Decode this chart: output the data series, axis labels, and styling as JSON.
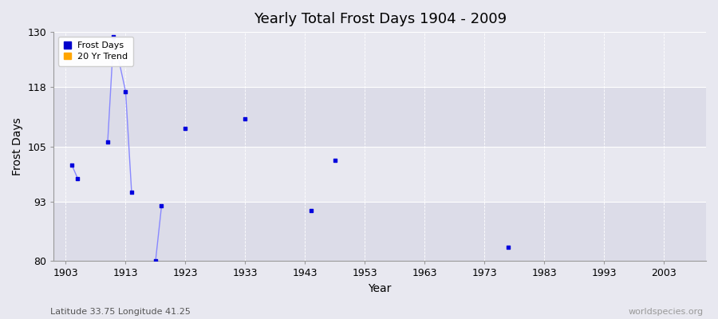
{
  "title": "Yearly Total Frost Days 1904 - 2009",
  "xlabel": "Year",
  "ylabel": "Frost Days",
  "xlim": [
    1901,
    2010
  ],
  "ylim": [
    80,
    130
  ],
  "yticks": [
    80,
    93,
    105,
    118,
    130
  ],
  "xticks": [
    1903,
    1913,
    1923,
    1933,
    1943,
    1953,
    1963,
    1973,
    1983,
    1993,
    2003
  ],
  "bg_color_light": "#dcdce8",
  "bg_color_dark": "#e8e8f0",
  "line_color": "#8888ff",
  "marker_color": "#0000dd",
  "legend_frost_color": "#0000cc",
  "legend_trend_color": "#ffa500",
  "subtitle": "Latitude 33.75 Longitude 41.25",
  "watermark": "worldspecies.org",
  "frost_years": [
    1904,
    1905,
    1910,
    1911,
    1913,
    1914,
    1918,
    1919,
    1923,
    1933,
    1944,
    1948,
    1977
  ],
  "frost_values": [
    101,
    98,
    106,
    129,
    117,
    95,
    80,
    92,
    109,
    111,
    91,
    102,
    83
  ],
  "segments": [
    [
      [
        1904,
        101
      ],
      [
        1905,
        98
      ]
    ],
    [
      [
        1910,
        106
      ],
      [
        1911,
        129
      ]
    ],
    [
      [
        1911,
        129
      ],
      [
        1913,
        117
      ]
    ],
    [
      [
        1913,
        117
      ],
      [
        1914,
        95
      ]
    ],
    [
      [
        1918,
        80
      ],
      [
        1919,
        92
      ]
    ]
  ],
  "isolated": [
    [
      1923,
      109
    ],
    [
      1933,
      111
    ],
    [
      1944,
      91
    ],
    [
      1948,
      102
    ],
    [
      1977,
      83
    ]
  ]
}
